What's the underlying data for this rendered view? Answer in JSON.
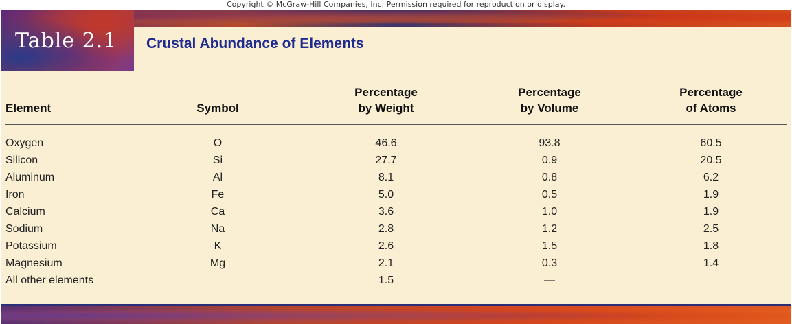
{
  "copyright": "Copyright © McGraw-Hill Companies, Inc. Permission required for reproduction or display.",
  "table": {
    "label": "Table 2.1",
    "title": "Crustal Abundance of Elements",
    "headers": {
      "element": "Element",
      "symbol": "Symbol",
      "weight_line1": "Percentage",
      "weight_line2": "by Weight",
      "volume_line1": "Percentage",
      "volume_line2": "by Volume",
      "atoms_line1": "Percentage",
      "atoms_line2": "of Atoms"
    },
    "rows": [
      {
        "element": "Oxygen",
        "symbol": "O",
        "weight": "46.6",
        "volume": "93.8",
        "atoms": "60.5"
      },
      {
        "element": "Silicon",
        "symbol": "Si",
        "weight": "27.7",
        "volume": "0.9",
        "atoms": "20.5"
      },
      {
        "element": "Aluminum",
        "symbol": "Al",
        "weight": "8.1",
        "volume": "0.8",
        "atoms": "6.2"
      },
      {
        "element": "Iron",
        "symbol": "Fe",
        "weight": "5.0",
        "volume": "0.5",
        "atoms": "1.9"
      },
      {
        "element": "Calcium",
        "symbol": "Ca",
        "weight": "3.6",
        "volume": "1.0",
        "atoms": "1.9"
      },
      {
        "element": "Sodium",
        "symbol": "Na",
        "weight": "2.8",
        "volume": "1.2",
        "atoms": "2.5"
      },
      {
        "element": "Potassium",
        "symbol": "K",
        "weight": "2.6",
        "volume": "1.5",
        "atoms": "1.8"
      },
      {
        "element": "Magnesium",
        "symbol": "Mg",
        "weight": "2.1",
        "volume": "0.3",
        "atoms": "1.4"
      },
      {
        "element": "All other elements",
        "symbol": "",
        "weight": "1.5",
        "volume": "—",
        "atoms": ""
      }
    ]
  }
}
